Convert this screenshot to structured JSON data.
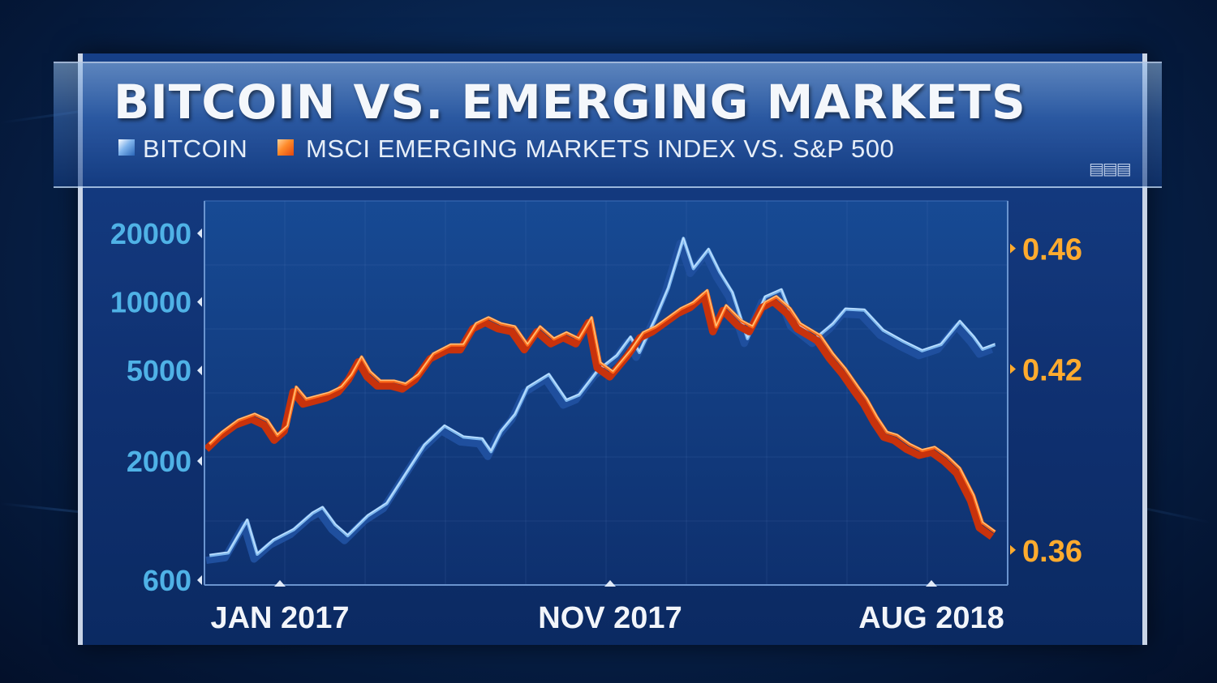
{
  "chart_data": {
    "type": "line",
    "title": "BITCOIN VS. EMERGING MARKETS",
    "legend": {
      "placement": "top-left",
      "items": [
        {
          "name": "BITCOIN",
          "color": "#7fb8ee"
        },
        {
          "name": "MSCI EMERGING MARKETS INDEX VS. S&P 500",
          "color": "#ff6a1a"
        }
      ]
    },
    "x_ticks": [
      "JAN 2017",
      "NOV 2017",
      "AUG 2018"
    ],
    "y_left": {
      "scale": "log",
      "ticks": [
        "20000",
        "10000",
        "5000",
        "2000",
        "600"
      ],
      "range": [
        600,
        20000
      ]
    },
    "y_right": {
      "scale": "linear",
      "ticks": [
        "0.46",
        "0.42",
        "0.36"
      ],
      "range": [
        0.35,
        0.465
      ]
    },
    "x_range": [
      "2016-12-01",
      "2018-09-01"
    ],
    "series": [
      {
        "name": "BITCOIN",
        "axis": "left",
        "color": "#7fb8ee",
        "points": [
          [
            "2016-12-05",
            770
          ],
          [
            "2016-12-20",
            790
          ],
          [
            "2017-01-04",
            1100
          ],
          [
            "2017-01-12",
            780
          ],
          [
            "2017-01-25",
            900
          ],
          [
            "2017-02-10",
            1000
          ],
          [
            "2017-02-25",
            1180
          ],
          [
            "2017-03-05",
            1250
          ],
          [
            "2017-03-15",
            1050
          ],
          [
            "2017-03-25",
            940
          ],
          [
            "2017-04-10",
            1150
          ],
          [
            "2017-04-25",
            1300
          ],
          [
            "2017-05-10",
            1750
          ],
          [
            "2017-05-25",
            2350
          ],
          [
            "2017-06-10",
            2850
          ],
          [
            "2017-06-25",
            2550
          ],
          [
            "2017-07-10",
            2500
          ],
          [
            "2017-07-17",
            2200
          ],
          [
            "2017-07-25",
            2700
          ],
          [
            "2017-08-05",
            3200
          ],
          [
            "2017-08-15",
            4200
          ],
          [
            "2017-09-01",
            4800
          ],
          [
            "2017-09-15",
            3700
          ],
          [
            "2017-09-25",
            3900
          ],
          [
            "2017-10-10",
            5000
          ],
          [
            "2017-10-25",
            5800
          ],
          [
            "2017-11-05",
            7000
          ],
          [
            "2017-11-12",
            6000
          ],
          [
            "2017-11-25",
            8500
          ],
          [
            "2017-12-05",
            11500
          ],
          [
            "2017-12-17",
            19000
          ],
          [
            "2017-12-25",
            14000
          ],
          [
            "2018-01-06",
            17000
          ],
          [
            "2018-01-15",
            13500
          ],
          [
            "2018-01-25",
            11000
          ],
          [
            "2018-02-06",
            6900
          ],
          [
            "2018-02-20",
            10500
          ],
          [
            "2018-03-05",
            11300
          ],
          [
            "2018-03-15",
            8200
          ],
          [
            "2018-04-01",
            6900
          ],
          [
            "2018-04-15",
            8000
          ],
          [
            "2018-04-25",
            9300
          ],
          [
            "2018-05-10",
            9200
          ],
          [
            "2018-05-25",
            7500
          ],
          [
            "2018-06-10",
            6700
          ],
          [
            "2018-06-25",
            6100
          ],
          [
            "2018-07-10",
            6500
          ],
          [
            "2018-07-25",
            8200
          ],
          [
            "2018-08-05",
            7000
          ],
          [
            "2018-08-12",
            6200
          ],
          [
            "2018-08-22",
            6500
          ]
        ]
      },
      {
        "name": "MSCI EMERGING MARKETS INDEX VS. S&P 500",
        "axis": "right",
        "color": "#ff6a1a",
        "points": [
          [
            "2016-12-05",
            0.395
          ],
          [
            "2016-12-15",
            0.399
          ],
          [
            "2016-12-28",
            0.403
          ],
          [
            "2017-01-10",
            0.405
          ],
          [
            "2017-01-20",
            0.403
          ],
          [
            "2017-01-28",
            0.398
          ],
          [
            "2017-02-05",
            0.401
          ],
          [
            "2017-02-12",
            0.414
          ],
          [
            "2017-02-20",
            0.41
          ],
          [
            "2017-03-01",
            0.411
          ],
          [
            "2017-03-10",
            0.412
          ],
          [
            "2017-03-20",
            0.414
          ],
          [
            "2017-03-28",
            0.418
          ],
          [
            "2017-04-05",
            0.424
          ],
          [
            "2017-04-12",
            0.419
          ],
          [
            "2017-04-20",
            0.416
          ],
          [
            "2017-05-01",
            0.416
          ],
          [
            "2017-05-10",
            0.415
          ],
          [
            "2017-05-20",
            0.418
          ],
          [
            "2017-06-01",
            0.425
          ],
          [
            "2017-06-15",
            0.428
          ],
          [
            "2017-06-25",
            0.428
          ],
          [
            "2017-07-05",
            0.435
          ],
          [
            "2017-07-15",
            0.437
          ],
          [
            "2017-07-25",
            0.435
          ],
          [
            "2017-08-05",
            0.434
          ],
          [
            "2017-08-15",
            0.428
          ],
          [
            "2017-08-25",
            0.434
          ],
          [
            "2017-09-05",
            0.43
          ],
          [
            "2017-09-15",
            0.432
          ],
          [
            "2017-09-25",
            0.43
          ],
          [
            "2017-10-05",
            0.437
          ],
          [
            "2017-10-12",
            0.422
          ],
          [
            "2017-10-22",
            0.419
          ],
          [
            "2017-11-05",
            0.426
          ],
          [
            "2017-11-15",
            0.432
          ],
          [
            "2017-11-25",
            0.434
          ],
          [
            "2017-12-05",
            0.437
          ],
          [
            "2017-12-15",
            0.44
          ],
          [
            "2017-12-25",
            0.442
          ],
          [
            "2018-01-05",
            0.446
          ],
          [
            "2018-01-12",
            0.434
          ],
          [
            "2018-01-20",
            0.441
          ],
          [
            "2018-02-01",
            0.436
          ],
          [
            "2018-02-10",
            0.434
          ],
          [
            "2018-02-20",
            0.442
          ],
          [
            "2018-03-01",
            0.444
          ],
          [
            "2018-03-12",
            0.44
          ],
          [
            "2018-03-20",
            0.435
          ],
          [
            "2018-04-05",
            0.431
          ],
          [
            "2018-04-15",
            0.425
          ],
          [
            "2018-04-25",
            0.42
          ],
          [
            "2018-05-05",
            0.414
          ],
          [
            "2018-05-12",
            0.41
          ],
          [
            "2018-05-20",
            0.404
          ],
          [
            "2018-05-28",
            0.399
          ],
          [
            "2018-06-05",
            0.398
          ],
          [
            "2018-06-15",
            0.395
          ],
          [
            "2018-06-25",
            0.393
          ],
          [
            "2018-07-05",
            0.394
          ],
          [
            "2018-07-15",
            0.391
          ],
          [
            "2018-07-25",
            0.387
          ],
          [
            "2018-08-05",
            0.378
          ],
          [
            "2018-08-12",
            0.369
          ],
          [
            "2018-08-22",
            0.366
          ]
        ]
      }
    ]
  }
}
